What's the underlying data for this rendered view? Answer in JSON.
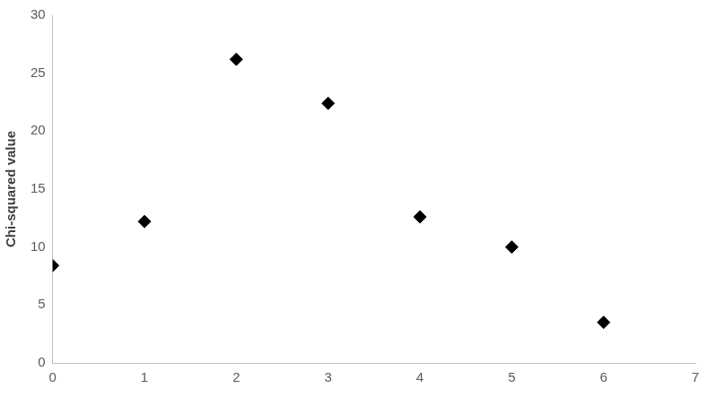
{
  "chart_data": {
    "type": "scatter",
    "y_label": "Chi-squared value",
    "x": [
      0,
      1,
      2,
      3,
      4,
      5,
      6
    ],
    "values": [
      8.4,
      12.2,
      26.2,
      22.4,
      12.6,
      10.0,
      3.5
    ],
    "color": "#000000",
    "marker": "diamond",
    "xlim": [
      0,
      7
    ],
    "xticks": [
      0,
      1,
      2,
      3,
      4,
      5,
      6,
      7
    ],
    "ylim": [
      0,
      30
    ],
    "yticks": [
      0,
      5,
      10,
      15,
      20,
      25,
      30
    ],
    "grid": false
  }
}
